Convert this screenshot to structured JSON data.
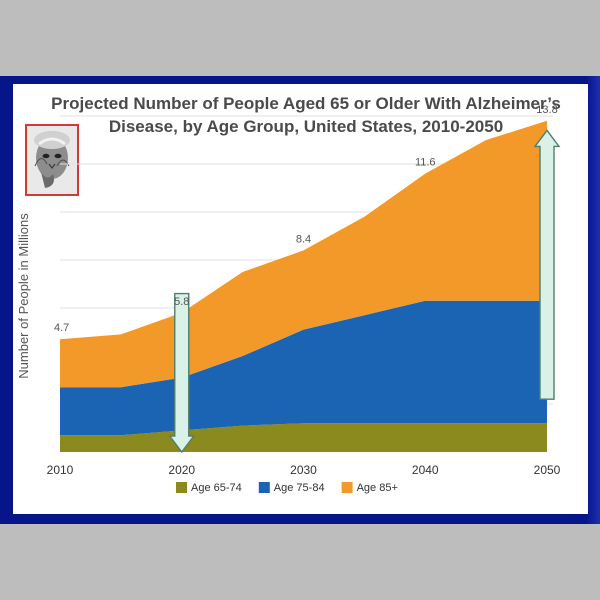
{
  "chart_data": {
    "type": "area",
    "stacked": true,
    "title_line1": "Projected Number of People Aged 65 or Older With Alzheimer’s",
    "title_line2": "Disease, by Age Group, United States, 2010-2050",
    "xlabel": "",
    "ylabel": "Number of People in Millions",
    "x": [
      2010,
      2015,
      2020,
      2025,
      2030,
      2035,
      2040,
      2045,
      2050
    ],
    "xticks": [
      "2010",
      "2020",
      "2030",
      "2040",
      "2050"
    ],
    "ylim": [
      0,
      14
    ],
    "grid": true,
    "series": [
      {
        "name": "Age 65-74",
        "color": "#8a8a1f",
        "values": [
          0.7,
          0.7,
          0.9,
          1.1,
          1.2,
          1.2,
          1.2,
          1.2,
          1.2
        ]
      },
      {
        "name": "Age 75-84",
        "color": "#1b64b3",
        "values": [
          2.0,
          2.0,
          2.2,
          2.9,
          3.9,
          4.5,
          5.1,
          5.1,
          5.1
        ]
      },
      {
        "name": "Age 85+",
        "color": "#f2992a",
        "values": [
          2.0,
          2.2,
          2.7,
          3.5,
          3.3,
          4.1,
          5.3,
          6.7,
          7.5
        ]
      }
    ],
    "totals": [
      {
        "x": 2010,
        "label": "4.7"
      },
      {
        "x": 2020,
        "label": "5.8"
      },
      {
        "x": 2030,
        "label": "8.4"
      },
      {
        "x": 2040,
        "label": "11.6"
      },
      {
        "x": 2050,
        "label": "13.8"
      }
    ],
    "arrows": [
      {
        "x": 2020,
        "direction": "down",
        "from": 6.6,
        "to": 0.0
      },
      {
        "x": 2050,
        "direction": "up",
        "from": 2.2,
        "to": 13.4
      }
    ],
    "legend_position": "bottom"
  },
  "images": {
    "portrait": "elderly-woman-photo",
    "wave": "great-wave-print"
  }
}
